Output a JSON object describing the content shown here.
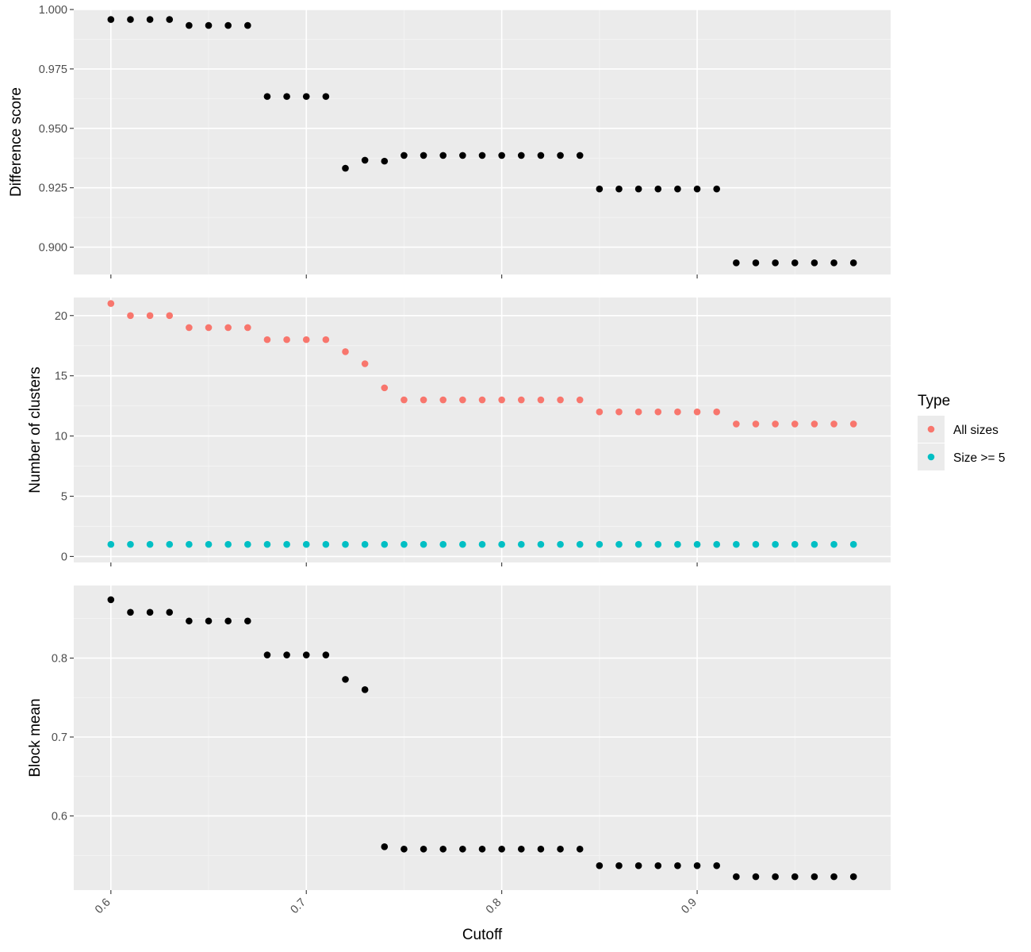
{
  "chart_data": [
    {
      "type": "scatter",
      "ylabel": "Difference score",
      "ylim": [
        0.8885,
        1.0
      ],
      "yticks": [
        "0.900",
        "0.925",
        "0.950",
        "0.975",
        "1.000"
      ],
      "series": [
        {
          "color": "#000000",
          "x": [
            0.6,
            0.61,
            0.62,
            0.63,
            0.64,
            0.65,
            0.66,
            0.67,
            0.68,
            0.69,
            0.7,
            0.71,
            0.72,
            0.73,
            0.74,
            0.75,
            0.76,
            0.77,
            0.78,
            0.79,
            0.8,
            0.81,
            0.82,
            0.83,
            0.84,
            0.85,
            0.86,
            0.87,
            0.88,
            0.89,
            0.9,
            0.91,
            0.92,
            0.93,
            0.94,
            0.95,
            0.96,
            0.97,
            0.98
          ],
          "values": [
            0.9958,
            0.9958,
            0.9958,
            0.9958,
            0.9933,
            0.9933,
            0.9933,
            0.9933,
            0.9634,
            0.9634,
            0.9634,
            0.9634,
            0.9332,
            0.9366,
            0.9362,
            0.9386,
            0.9386,
            0.9386,
            0.9386,
            0.9386,
            0.9386,
            0.9386,
            0.9386,
            0.9386,
            0.9386,
            0.9245,
            0.9245,
            0.9245,
            0.9245,
            0.9245,
            0.9245,
            0.9245,
            0.8934,
            0.8934,
            0.8934,
            0.8934,
            0.8934,
            0.8934,
            0.8934
          ]
        }
      ]
    },
    {
      "type": "scatter",
      "ylabel": "Number of clusters",
      "ylim": [
        -0.5,
        21.5
      ],
      "yticks": [
        "0",
        "5",
        "10",
        "15",
        "20"
      ],
      "series": [
        {
          "name": "All sizes",
          "color": "#F8766D",
          "x": [
            0.6,
            0.61,
            0.62,
            0.63,
            0.64,
            0.65,
            0.66,
            0.67,
            0.68,
            0.69,
            0.7,
            0.71,
            0.72,
            0.73,
            0.74,
            0.75,
            0.76,
            0.77,
            0.78,
            0.79,
            0.8,
            0.81,
            0.82,
            0.83,
            0.84,
            0.85,
            0.86,
            0.87,
            0.88,
            0.89,
            0.9,
            0.91,
            0.92,
            0.93,
            0.94,
            0.95,
            0.96,
            0.97,
            0.98
          ],
          "values": [
            21,
            20,
            20,
            20,
            19,
            19,
            19,
            19,
            18,
            18,
            18,
            18,
            17,
            16,
            14,
            13,
            13,
            13,
            13,
            13,
            13,
            13,
            13,
            13,
            13,
            12,
            12,
            12,
            12,
            12,
            12,
            12,
            11,
            11,
            11,
            11,
            11,
            11,
            11
          ]
        },
        {
          "name": "Size >= 5",
          "color": "#00BFC4",
          "x": [
            0.6,
            0.61,
            0.62,
            0.63,
            0.64,
            0.65,
            0.66,
            0.67,
            0.68,
            0.69,
            0.7,
            0.71,
            0.72,
            0.73,
            0.74,
            0.75,
            0.76,
            0.77,
            0.78,
            0.79,
            0.8,
            0.81,
            0.82,
            0.83,
            0.84,
            0.85,
            0.86,
            0.87,
            0.88,
            0.89,
            0.9,
            0.91,
            0.92,
            0.93,
            0.94,
            0.95,
            0.96,
            0.97,
            0.98
          ],
          "values": [
            1,
            1,
            1,
            1,
            1,
            1,
            1,
            1,
            1,
            1,
            1,
            1,
            1,
            1,
            1,
            1,
            1,
            1,
            1,
            1,
            1,
            1,
            1,
            1,
            1,
            1,
            1,
            1,
            1,
            1,
            1,
            1,
            1,
            1,
            1,
            1,
            1,
            1,
            1
          ]
        }
      ]
    },
    {
      "type": "scatter",
      "ylabel": "Block mean",
      "ylim": [
        0.506,
        0.892
      ],
      "yticks": [
        "0.6",
        "0.7",
        "0.8"
      ],
      "series": [
        {
          "color": "#000000",
          "x": [
            0.6,
            0.61,
            0.62,
            0.63,
            0.64,
            0.65,
            0.66,
            0.67,
            0.68,
            0.69,
            0.7,
            0.71,
            0.72,
            0.73,
            0.74,
            0.75,
            0.76,
            0.77,
            0.78,
            0.79,
            0.8,
            0.81,
            0.82,
            0.83,
            0.84,
            0.85,
            0.86,
            0.87,
            0.88,
            0.89,
            0.9,
            0.91,
            0.92,
            0.93,
            0.94,
            0.95,
            0.96,
            0.97,
            0.98
          ],
          "values": [
            0.874,
            0.858,
            0.858,
            0.858,
            0.847,
            0.847,
            0.847,
            0.847,
            0.804,
            0.804,
            0.804,
            0.804,
            0.773,
            0.76,
            0.561,
            0.558,
            0.558,
            0.558,
            0.558,
            0.558,
            0.558,
            0.558,
            0.558,
            0.558,
            0.558,
            0.537,
            0.537,
            0.537,
            0.537,
            0.537,
            0.537,
            0.537,
            0.523,
            0.523,
            0.523,
            0.523,
            0.523,
            0.523,
            0.523
          ]
        }
      ]
    }
  ],
  "x_axis": {
    "label": "Cutoff",
    "xlim": [
      0.581,
      0.999
    ],
    "ticks": [
      "0.6",
      "0.7",
      "0.8",
      "0.9"
    ]
  },
  "legend": {
    "title": "Type",
    "placement": "right",
    "items": [
      {
        "label": "All sizes",
        "color": "#F8766D"
      },
      {
        "label": "Size >= 5",
        "color": "#00BFC4"
      }
    ]
  },
  "colors": {
    "panel_background": "#EBEBEB",
    "grid_major": "#FFFFFF",
    "grid_minor": "#F5F5F5",
    "tick_color": "#333333"
  }
}
